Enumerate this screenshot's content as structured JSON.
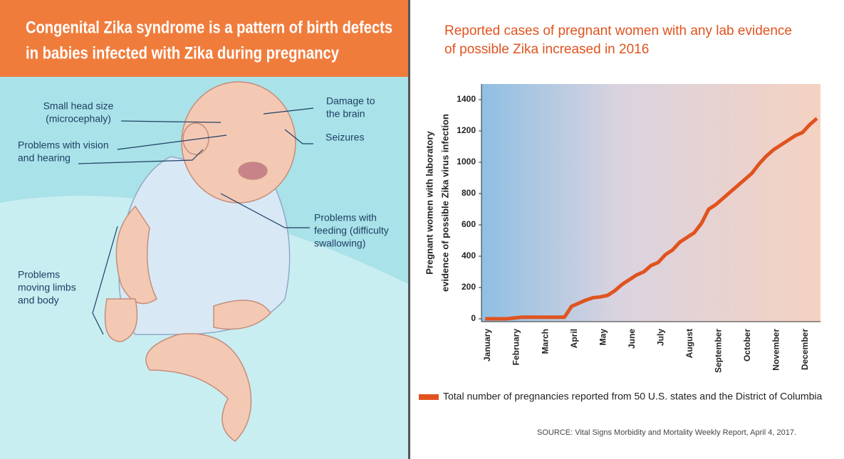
{
  "panel": {
    "title": [
      "Congenital Zika syndrome is a pattern of birth defects",
      "in babies infected with Zika during pregnancy"
    ],
    "labels": [
      {
        "lines": [
          "Small head size",
          "(microcephaly)"
        ]
      },
      {
        "lines": [
          "Problems with vision",
          "and hearing"
        ]
      },
      {
        "lines": [
          "Damage to",
          "the brain"
        ]
      },
      {
        "lines": [
          "Seizures"
        ]
      },
      {
        "lines": [
          "Problems with",
          "feeding (difficulty",
          "swallowing)"
        ]
      },
      {
        "lines": [
          "Problems",
          "moving limbs",
          "and body"
        ]
      }
    ]
  },
  "chart_data": {
    "type": "line",
    "title": [
      "Reported cases of pregnant women with any lab evidence",
      "of possible Zika increased in 2016"
    ],
    "y_label": [
      "Pregnant women with laboratory",
      "evidence of possible Zika virus infection"
    ],
    "categories": [
      "January",
      null,
      null,
      null,
      "February",
      null,
      null,
      null,
      "March",
      null,
      null,
      null,
      "April",
      null,
      null,
      null,
      "May",
      null,
      null,
      null,
      "June",
      null,
      null,
      null,
      "July",
      null,
      null,
      null,
      "August",
      null,
      null,
      null,
      "September",
      null,
      null,
      null,
      "October",
      null,
      null,
      null,
      "November",
      null,
      null,
      null,
      "December",
      null,
      null
    ],
    "series": [
      {
        "name": "Total number of pregnancies reported from 50 U.S. states and the District of Columbia",
        "color": "#e0531f",
        "values": [
          0,
          0,
          0,
          0,
          5,
          10,
          10,
          10,
          10,
          10,
          10,
          10,
          80,
          100,
          120,
          135,
          140,
          150,
          180,
          220,
          250,
          280,
          300,
          340,
          360,
          410,
          440,
          490,
          520,
          550,
          610,
          700,
          730,
          770,
          810,
          850,
          890,
          930,
          990,
          1040,
          1080,
          1110,
          1140,
          1170,
          1190,
          1240,
          1280
        ]
      }
    ],
    "ylim": [
      0,
      1500
    ],
    "yticks": [
      0,
      200,
      400,
      600,
      800,
      1000,
      1200,
      1400
    ],
    "source": "SOURCE: Vital Signs Morbidity and Mortality Weekly Report, April 4, 2017."
  }
}
